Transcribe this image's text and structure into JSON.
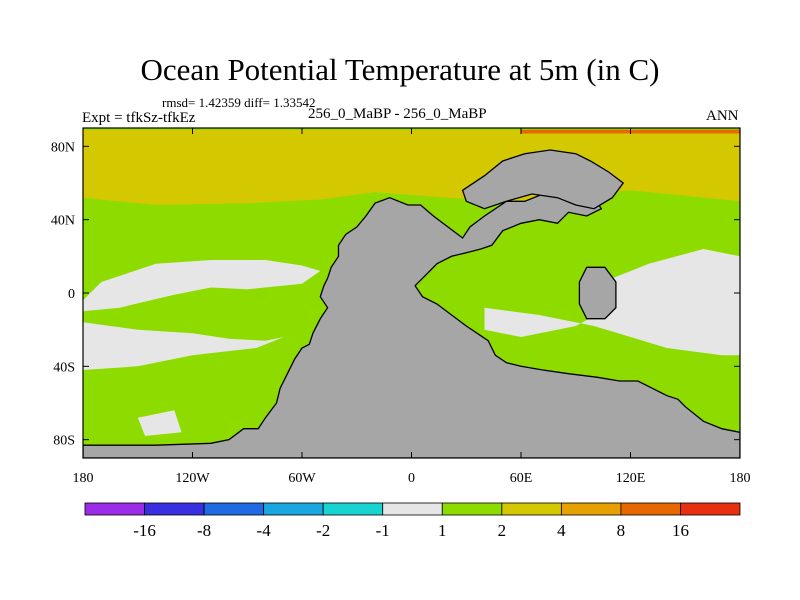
{
  "title": "Ocean Potential Temperature at 5m (in C)",
  "stats": "rmsd= 1.42359 diff= 1.33542",
  "left_string": "Expt = tfkSz-tfkEz",
  "center_string": "256_0_MaBP - 256_0_MaBP",
  "right_string": "ANN",
  "chart_data": {
    "type": "heatmap",
    "title": "Ocean Potential Temperature at 5m (in C)",
    "units": "C",
    "xlim": [
      -180,
      180
    ],
    "ylim": [
      -90,
      90
    ],
    "x_ticks": [
      {
        "value": -180,
        "label": "180"
      },
      {
        "value": -120,
        "label": "120W"
      },
      {
        "value": -60,
        "label": "60W"
      },
      {
        "value": 0,
        "label": "0"
      },
      {
        "value": 60,
        "label": "60E"
      },
      {
        "value": 120,
        "label": "120E"
      },
      {
        "value": 180,
        "label": "180"
      }
    ],
    "y_ticks": [
      {
        "value": 80,
        "label": "80N"
      },
      {
        "value": 40,
        "label": "40N"
      },
      {
        "value": 0,
        "label": "0"
      },
      {
        "value": -40,
        "label": "40S"
      },
      {
        "value": -80,
        "label": "80S"
      }
    ],
    "colorbar": {
      "labels": [
        "-16",
        "-8",
        "-4",
        "-2",
        "-1",
        "1",
        "2",
        "4",
        "8",
        "16"
      ],
      "colors": [
        "#9b2ce8",
        "#3a2fe0",
        "#1f6be3",
        "#1aa6e0",
        "#17d4d0",
        "#e6e6e6",
        "#8edb00",
        "#d4c800",
        "#e6a000",
        "#e86800",
        "#e83010"
      ]
    },
    "regions": [
      {
        "name": "band-2-4",
        "value_range": [
          2,
          4
        ],
        "color": "#d4c800",
        "polygon": [
          [
            -180,
            89
          ],
          [
            180,
            89
          ],
          [
            180,
            40
          ],
          [
            -180,
            40
          ]
        ]
      },
      {
        "name": "band-8-16",
        "value_range": [
          8,
          16
        ],
        "color": "#e86800",
        "polygon": [
          [
            60,
            89
          ],
          [
            180,
            89
          ],
          [
            180,
            87
          ],
          [
            60,
            87
          ]
        ]
      },
      {
        "name": "band-1-2",
        "value_range": [
          1,
          2
        ],
        "color": "#8edb00",
        "polygon": [
          [
            -180,
            52
          ],
          [
            -140,
            48
          ],
          [
            -90,
            49
          ],
          [
            -50,
            51
          ],
          [
            -20,
            55
          ],
          [
            20,
            52
          ],
          [
            60,
            50
          ],
          [
            120,
            56
          ],
          [
            180,
            50
          ],
          [
            180,
            -74
          ],
          [
            -180,
            -82
          ]
        ]
      },
      {
        "name": "band-neg1-1-north-pacific",
        "value_range": [
          -1,
          1
        ],
        "color": "#e6e6e6",
        "polygon": [
          [
            -180,
            -4
          ],
          [
            -170,
            6
          ],
          [
            -140,
            16
          ],
          [
            -110,
            18
          ],
          [
            -80,
            18
          ],
          [
            -60,
            15
          ],
          [
            -50,
            12
          ],
          [
            -60,
            5
          ],
          [
            -90,
            2
          ],
          [
            -110,
            3
          ],
          [
            -130,
            -1
          ],
          [
            -160,
            -8
          ],
          [
            -180,
            -10
          ]
        ]
      },
      {
        "name": "band-neg1-1-equatorial",
        "value_range": [
          -1,
          1
        ],
        "color": "#e6e6e6",
        "polygon": [
          [
            -180,
            -16
          ],
          [
            -150,
            -20
          ],
          [
            -120,
            -22
          ],
          [
            -100,
            -25
          ],
          [
            -80,
            -26
          ],
          [
            -70,
            -24
          ],
          [
            -85,
            -30
          ],
          [
            -120,
            -34
          ],
          [
            -150,
            -40
          ],
          [
            -180,
            -42
          ]
        ]
      },
      {
        "name": "band-neg1-1-east",
        "value_range": [
          -1,
          1
        ],
        "color": "#e6e6e6",
        "polygon": [
          [
            40,
            -8
          ],
          [
            70,
            -12
          ],
          [
            100,
            -18
          ],
          [
            120,
            -24
          ],
          [
            140,
            -30
          ],
          [
            170,
            -34
          ],
          [
            180,
            -34
          ],
          [
            180,
            20
          ],
          [
            160,
            24
          ],
          [
            130,
            16
          ],
          [
            110,
            8
          ],
          [
            112,
            -6
          ],
          [
            90,
            -18
          ],
          [
            60,
            -24
          ],
          [
            40,
            -20
          ]
        ]
      },
      {
        "name": "band-neg1-1-small",
        "value_range": [
          -1,
          1
        ],
        "color": "#e6e6e6",
        "polygon": [
          [
            -150,
            -68
          ],
          [
            -130,
            -64
          ],
          [
            -126,
            -76
          ],
          [
            -146,
            -78
          ]
        ]
      },
      {
        "name": "landmass-main",
        "value_range": null,
        "color": "#a6a6a6",
        "polygon": [
          [
            -25,
            42
          ],
          [
            -20,
            49
          ],
          [
            -12,
            52
          ],
          [
            -2,
            48
          ],
          [
            5,
            48
          ],
          [
            12,
            42
          ],
          [
            20,
            36
          ],
          [
            28,
            30
          ],
          [
            32,
            36
          ],
          [
            40,
            42
          ],
          [
            52,
            50
          ],
          [
            62,
            50
          ],
          [
            72,
            54
          ],
          [
            82,
            56
          ],
          [
            92,
            58
          ],
          [
            100,
            52
          ],
          [
            104,
            46
          ],
          [
            96,
            42
          ],
          [
            86,
            44
          ],
          [
            80,
            38
          ],
          [
            70,
            40
          ],
          [
            60,
            38
          ],
          [
            50,
            34
          ],
          [
            44,
            26
          ],
          [
            38,
            24
          ],
          [
            30,
            22
          ],
          [
            22,
            20
          ],
          [
            14,
            16
          ],
          [
            10,
            12
          ],
          [
            6,
            8
          ],
          [
            2,
            4
          ],
          [
            6,
            -2
          ],
          [
            14,
            -6
          ],
          [
            22,
            -12
          ],
          [
            30,
            -18
          ],
          [
            36,
            -22
          ],
          [
            42,
            -26
          ],
          [
            46,
            -34
          ],
          [
            52,
            -38
          ],
          [
            60,
            -40
          ],
          [
            72,
            -42
          ],
          [
            86,
            -44
          ],
          [
            102,
            -46
          ],
          [
            114,
            -48
          ],
          [
            124,
            -48
          ],
          [
            132,
            -52
          ],
          [
            136,
            -54
          ],
          [
            140,
            -56
          ],
          [
            146,
            -58
          ],
          [
            150,
            -62
          ],
          [
            160,
            -70
          ],
          [
            170,
            -74
          ],
          [
            180,
            -76
          ],
          [
            180,
            -90
          ],
          [
            -180,
            -90
          ],
          [
            -180,
            -83
          ],
          [
            -160,
            -83
          ],
          [
            -140,
            -83
          ],
          [
            -110,
            -82
          ],
          [
            -100,
            -80
          ],
          [
            -92,
            -74
          ],
          [
            -84,
            -74
          ],
          [
            -80,
            -68
          ],
          [
            -74,
            -60
          ],
          [
            -72,
            -52
          ],
          [
            -68,
            -44
          ],
          [
            -64,
            -36
          ],
          [
            -60,
            -30
          ],
          [
            -56,
            -28
          ],
          [
            -54,
            -22
          ],
          [
            -50,
            -14
          ],
          [
            -46,
            -8
          ],
          [
            -50,
            -2
          ],
          [
            -48,
            4
          ],
          [
            -46,
            8
          ],
          [
            -44,
            14
          ],
          [
            -40,
            20
          ],
          [
            -40,
            26
          ],
          [
            -36,
            32
          ],
          [
            -30,
            36
          ]
        ]
      },
      {
        "name": "landmass-east",
        "value_range": null,
        "color": "#a6a6a6",
        "polygon": [
          [
            96,
            14
          ],
          [
            106,
            14
          ],
          [
            112,
            6
          ],
          [
            112,
            -8
          ],
          [
            106,
            -14
          ],
          [
            96,
            -14
          ],
          [
            92,
            -6
          ],
          [
            92,
            6
          ]
        ]
      },
      {
        "name": "landmass-north",
        "value_range": null,
        "color": "#a6a6a6",
        "polygon": [
          [
            28,
            56
          ],
          [
            40,
            64
          ],
          [
            50,
            72
          ],
          [
            62,
            76
          ],
          [
            76,
            78
          ],
          [
            90,
            76
          ],
          [
            98,
            72
          ],
          [
            108,
            66
          ],
          [
            116,
            60
          ],
          [
            110,
            52
          ],
          [
            100,
            46
          ],
          [
            90,
            48
          ],
          [
            80,
            52
          ],
          [
            66,
            54
          ],
          [
            52,
            50
          ],
          [
            40,
            46
          ],
          [
            30,
            50
          ]
        ]
      }
    ]
  }
}
